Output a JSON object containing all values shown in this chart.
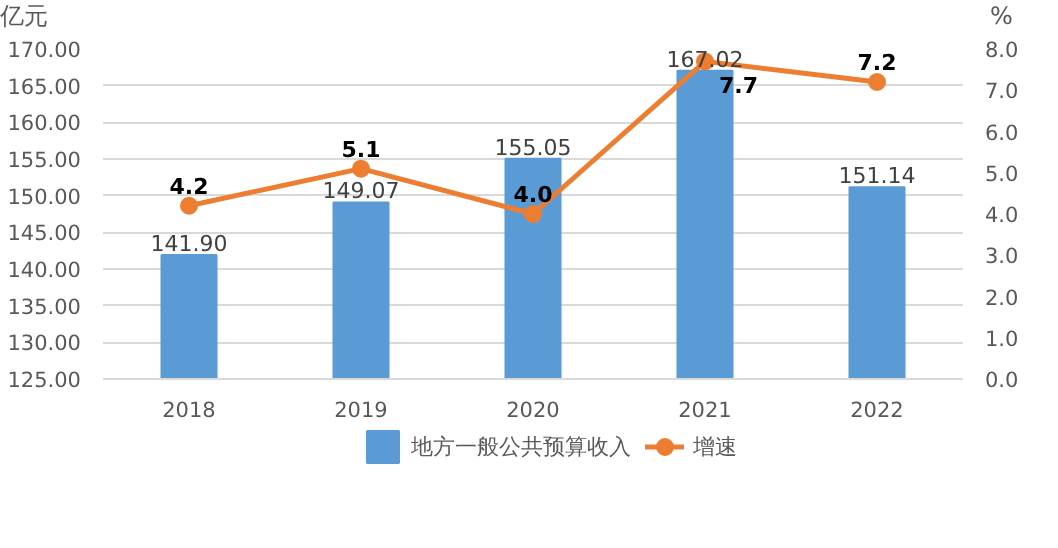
{
  "chart_data": {
    "type": "bar",
    "categories": [
      "2018",
      "2019",
      "2020",
      "2021",
      "2022"
    ],
    "ylabel": "亿元",
    "y2label": "%",
    "series": [
      {
        "name": "地方一般公共预算收入",
        "color": "#5b9bd5",
        "values": [
          141.9,
          149.07,
          155.05,
          167.02,
          151.14
        ],
        "value_labels": [
          "141.90",
          "149.07",
          "155.05",
          "167.02",
          "151.14"
        ]
      },
      {
        "name": "增速",
        "type": "line",
        "axis": "y2",
        "color": "#ed7d31",
        "marker": "circle",
        "values": [
          4.2,
          5.1,
          4.0,
          7.7,
          7.2
        ],
        "value_labels": [
          "4.2",
          "5.1",
          "4.0",
          "7.7",
          "7.2"
        ]
      }
    ],
    "ylim": [
      125,
      170
    ],
    "yticks": [
      {
        "value": 125,
        "label": "125.00"
      },
      {
        "value": 130,
        "label": "130.00"
      },
      {
        "value": 135,
        "label": "135.00"
      },
      {
        "value": 140,
        "label": "140.00"
      },
      {
        "value": 145,
        "label": "145.00"
      },
      {
        "value": 150,
        "label": "150.00"
      },
      {
        "value": 155,
        "label": "155.00"
      },
      {
        "value": 160,
        "label": "160.00"
      },
      {
        "value": 165,
        "label": "165.00"
      },
      {
        "value": 170,
        "label": "170.00"
      }
    ],
    "y2lim": [
      0,
      8
    ],
    "y2ticks": [
      {
        "value": 0,
        "label": "0.0"
      },
      {
        "value": 1,
        "label": "1.0"
      },
      {
        "value": 2,
        "label": "2.0"
      },
      {
        "value": 3,
        "label": "3.0"
      },
      {
        "value": 4,
        "label": "4.0"
      },
      {
        "value": 5,
        "label": "5.0"
      },
      {
        "value": 6,
        "label": "6.0"
      },
      {
        "value": 7,
        "label": "7.0"
      },
      {
        "value": 8,
        "label": "8.0"
      }
    ],
    "grid": "y",
    "legend": "bottom"
  }
}
